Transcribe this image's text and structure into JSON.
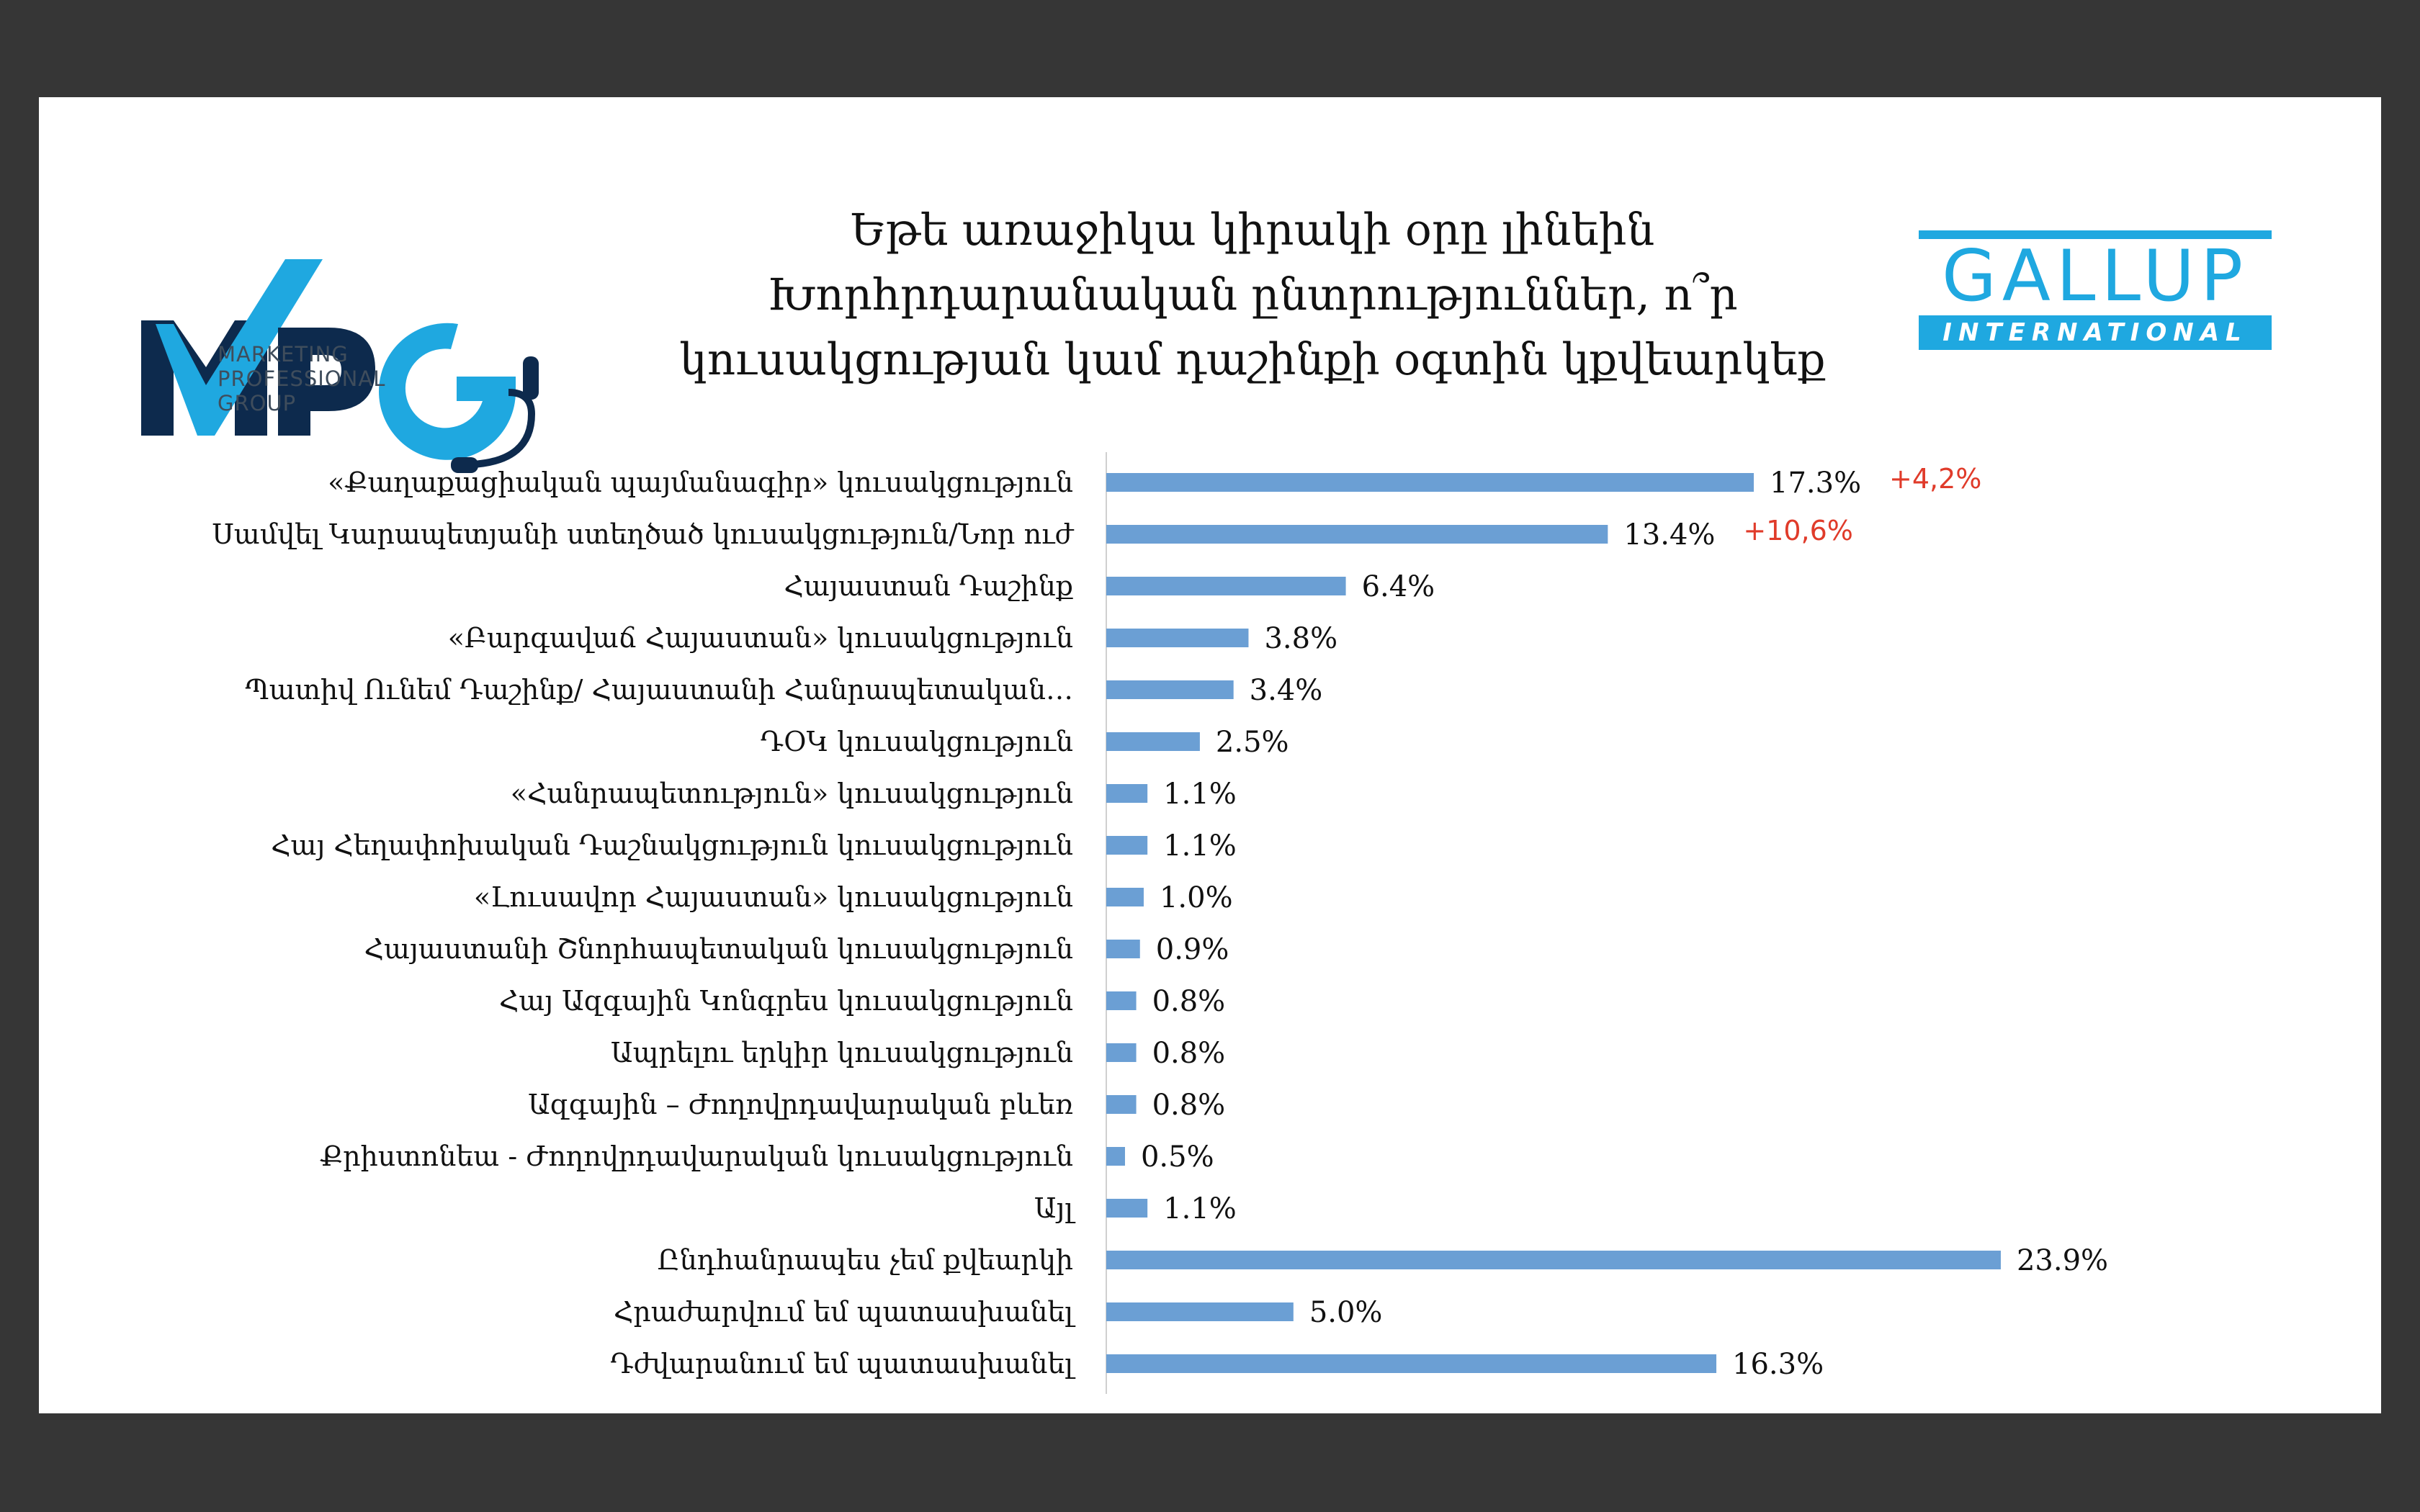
{
  "header": {
    "title_lines": [
      "Եթե առաջիկա կիրակի օրը լինեին",
      "Խորհրդարանական ընտրություններ, ո՞ր",
      "կուսակցության կամ դաշինքի օգտին կքվեարկեք"
    ]
  },
  "logos": {
    "left": {
      "wordmark": "MPG",
      "subtitle_lines": [
        "MARKETING",
        "PROFESSIONAL",
        "GROUP"
      ],
      "colors": {
        "dark": "#0d2a4d",
        "light": "#1fa8e0"
      }
    },
    "right": {
      "wordmark": "GALLUP",
      "band_text": "INTERNATIONAL",
      "color": "#1fa8e0"
    }
  },
  "chart_data": {
    "type": "bar",
    "orientation": "horizontal",
    "bar_color": "#6b9fd4",
    "note_color": "#e03b2a",
    "xlim": [
      0,
      25
    ],
    "grid": false,
    "categories": [
      "«Քաղաքացիական պայմանագիր» կուսակցություն",
      "Սամվել Կարապետյանի ստեղծած կուսակցություն/Նոր ուժ",
      "Հայաստան Դաշինք",
      "«Բարգավաճ Հայաստան» կուսակցություն",
      "Պատիվ Ունեմ Դաշինք/ Հայաստանի Հանրապետական…",
      "ԴՕԿ կուսակցություն",
      "«Հանրապետություն» կուսակցություն",
      "Հայ Հեղափոխական Դաշնակցություն կուսակցություն",
      "«Լուսավոր Հայաստան» կուսակցություն",
      "Հայաստանի Շնորհապետական կուսակցություն",
      "Հայ Ազգային Կոնգրես կուսակցություն",
      "Ապրելու երկիր կուսակցություն",
      "Ազգային – Ժողովրդավարական բևեռ",
      "Քրիստոնեա - Ժողովրդավարական կուսակցություն",
      "Այլ",
      "Ընդհանրապես չեմ քվեարկի",
      "Հրաժարվում եմ պատասխանել",
      "Դժվարանում եմ պատասխանել"
    ],
    "values": [
      17.3,
      13.4,
      6.4,
      3.8,
      3.4,
      2.5,
      1.1,
      1.1,
      1.0,
      0.9,
      0.8,
      0.8,
      0.8,
      0.5,
      1.1,
      23.9,
      5.0,
      16.3
    ],
    "value_labels": [
      "17.3%",
      "13.4%",
      "6.4%",
      "3.8%",
      "3.4%",
      "2.5%",
      "1.1%",
      "1.1%",
      "1.0%",
      "0.9%",
      "0.8%",
      "0.8%",
      "0.8%",
      "0.5%",
      "1.1%",
      "23.9%",
      "5.0%",
      "16.3%"
    ],
    "annotations": [
      {
        "category_index": 0,
        "text": "+4,2%"
      },
      {
        "category_index": 1,
        "text": "+10,6%"
      }
    ]
  }
}
